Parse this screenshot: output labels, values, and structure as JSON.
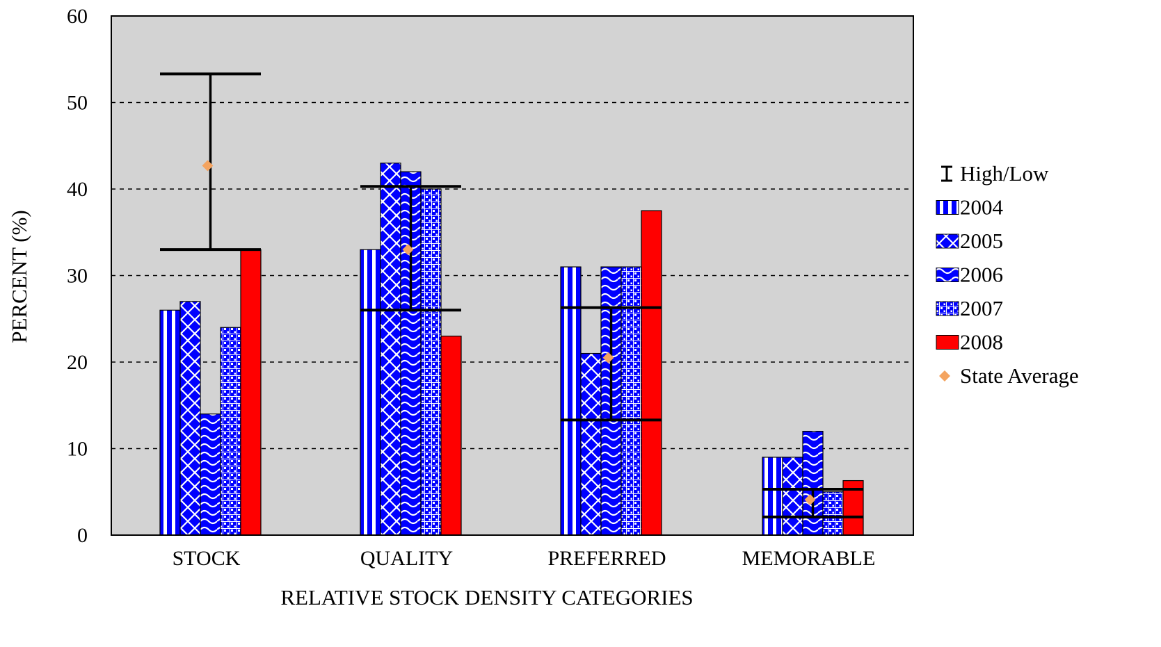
{
  "chart_data": {
    "type": "bar",
    "xlabel": "RELATIVE STOCK DENSITY CATEGORIES",
    "ylabel": "PERCENT (%)",
    "ylim": [
      0,
      60
    ],
    "yticks": [
      0,
      10,
      20,
      30,
      40,
      50,
      60
    ],
    "grid": "horizontal dashed",
    "legend_position": "right",
    "categories": [
      "STOCK",
      "QUALITY",
      "PREFERRED",
      "MEMORABLE"
    ],
    "series": [
      {
        "name": "2004",
        "values": [
          26,
          33,
          31,
          9
        ],
        "color": "#0000ff",
        "pattern": "vertical-stripes"
      },
      {
        "name": "2005",
        "values": [
          27,
          43,
          21,
          9
        ],
        "color": "#0000ff",
        "pattern": "diagonal-cross"
      },
      {
        "name": "2006",
        "values": [
          14,
          42,
          31,
          12
        ],
        "color": "#0000ff",
        "pattern": "waves"
      },
      {
        "name": "2007",
        "values": [
          24,
          40,
          31,
          5
        ],
        "color": "#0000ff",
        "pattern": "checker"
      },
      {
        "name": "2008",
        "values": [
          33,
          23,
          37.5,
          6.3
        ],
        "color": "#ff0000",
        "pattern": "solid"
      }
    ],
    "high_low": {
      "name": "High/Low",
      "high": [
        53.3,
        40.3,
        26.3,
        5.3
      ],
      "low": [
        33.0,
        26.0,
        13.3,
        2.1
      ]
    },
    "state_average": {
      "name": "State Average",
      "values": [
        42.7,
        33.0,
        20.5,
        4.1
      ],
      "color": "#f4a460"
    },
    "plot_background": "#d3d3d3"
  }
}
